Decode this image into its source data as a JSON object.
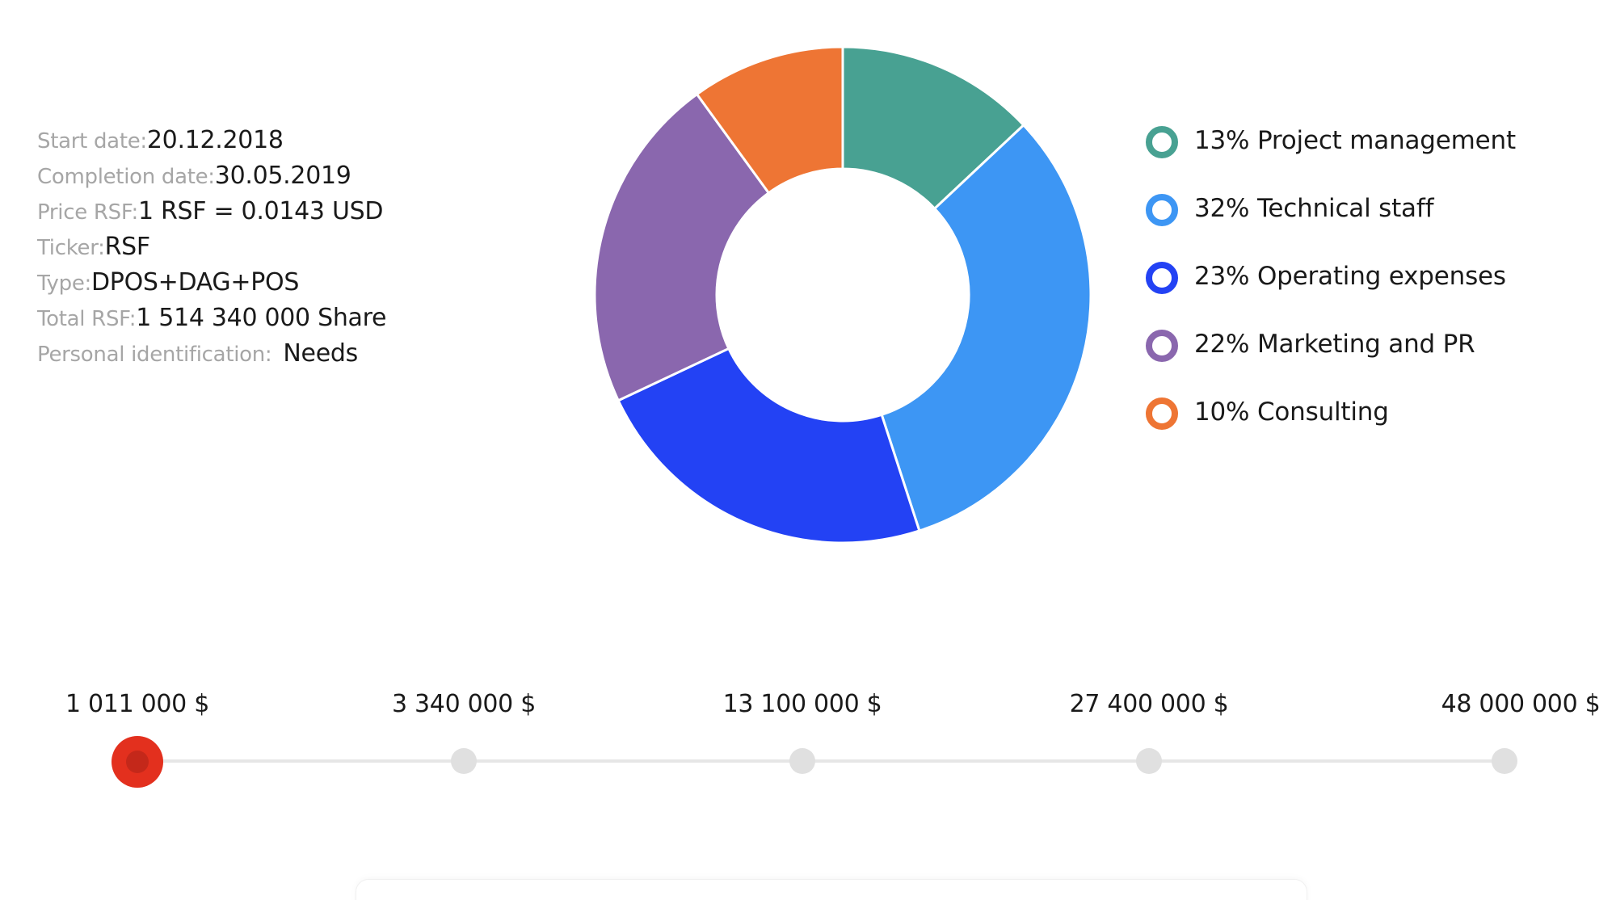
{
  "project_info": {
    "rows": [
      {
        "label": "Start date:",
        "value": "20.12.2018"
      },
      {
        "label": "Completion date:",
        "value": "30.05.2019"
      },
      {
        "label": "Price RSF:",
        "value": "1 RSF = 0.0143 USD"
      },
      {
        "label": "Ticker:",
        "value": "RSF"
      },
      {
        "label": "Type:",
        "value": "DPOS+DAG+POS"
      },
      {
        "label": "Total RSF:",
        "value": "1 514 340 000 Share"
      },
      {
        "label": "Personal identification:",
        "value": "Needs"
      }
    ]
  },
  "chart_data": {
    "type": "pie",
    "categories": [
      "Project management",
      "Technical staff",
      "Operating expenses",
      "Marketing and PR",
      "Consulting"
    ],
    "values": [
      13,
      32,
      23,
      22,
      10
    ],
    "colors": [
      "#48a192",
      "#3d96f4",
      "#2342f4",
      "#8a67ae",
      "#ee7534"
    ],
    "donut": true,
    "legend_position": "right"
  },
  "legend": {
    "items": [
      {
        "text": "13% Project management",
        "color": "#48a192",
        "icon": "ring-icon"
      },
      {
        "text": "32% Technical staff",
        "color": "#3d96f4",
        "icon": "ring-icon"
      },
      {
        "text": "23% Operating expenses",
        "color": "#2342f4",
        "icon": "ring-icon"
      },
      {
        "text": "22% Marketing and PR",
        "color": "#8a67ae",
        "icon": "ring-icon"
      },
      {
        "text": "10% Consulting",
        "color": "#ee7534",
        "icon": "ring-icon"
      }
    ]
  },
  "milestones": {
    "active_index": 0,
    "active_color": "#e3301e",
    "items": [
      {
        "label": "1 011 000 $"
      },
      {
        "label": "3 340 000 $"
      },
      {
        "label": "13 100 000 $"
      },
      {
        "label": "27 400 000 $"
      },
      {
        "label": "48 000 000 $"
      }
    ]
  }
}
